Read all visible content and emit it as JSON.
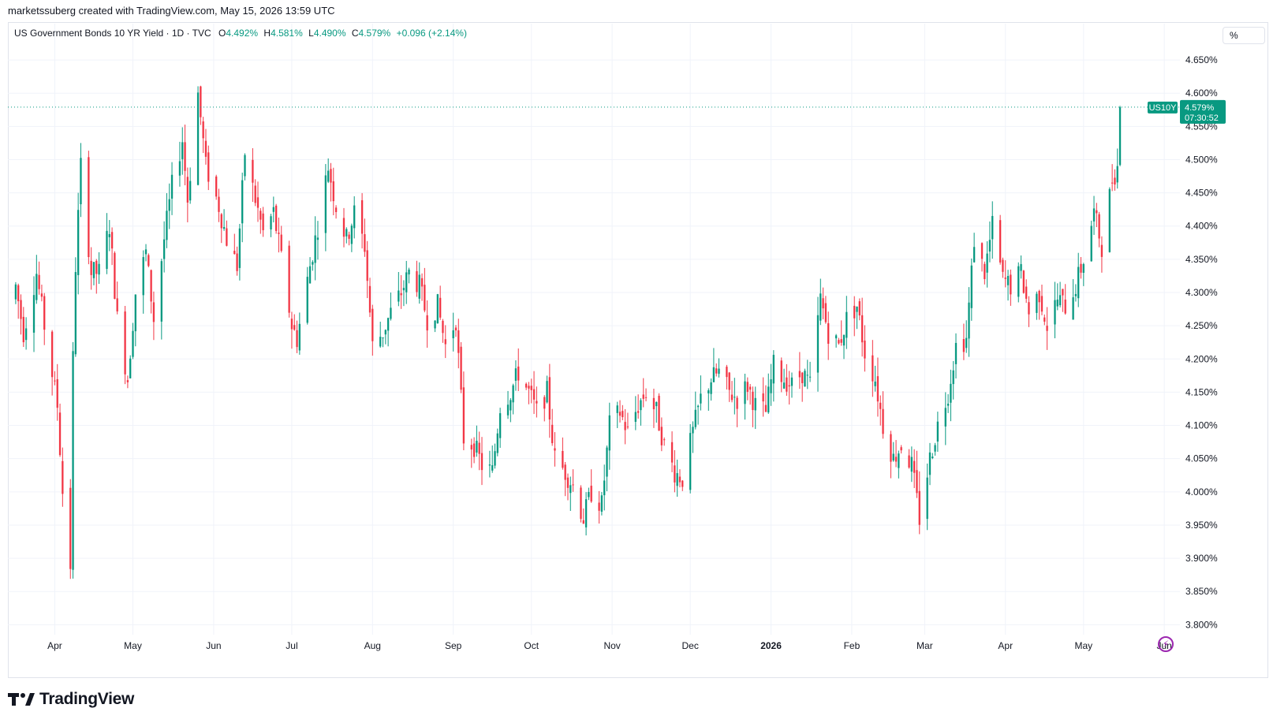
{
  "credit": "marketssuberg created with TradingView.com, May 15, 2026 13:59 UTC",
  "legend": {
    "title": "US Government Bonds 10 YR Yield · 1D · TVC",
    "o_label": "O",
    "o_value": "4.492%",
    "h_label": "H",
    "h_value": "4.581%",
    "l_label": "L",
    "l_value": "4.490%",
    "c_label": "C",
    "c_value": "4.579%",
    "change": "+0.096 (+2.14%)"
  },
  "unit": "%",
  "price_label": {
    "symbol": "US10Y",
    "price": "4.579%",
    "countdown": "07:30:52"
  },
  "brand": "TradingView",
  "colors": {
    "up": "#089981",
    "down": "#f23645",
    "grid": "#f0f3fa",
    "text": "#131722",
    "accent": "#9c27b0"
  },
  "icons": {
    "logo": "tradingview-logo-icon",
    "flash": "lightning-icon"
  },
  "chart_data": {
    "type": "candlestick",
    "y_ticks": [
      "4.650%",
      "4.600%",
      "4.550%",
      "4.500%",
      "4.450%",
      "4.400%",
      "4.350%",
      "4.300%",
      "4.250%",
      "4.200%",
      "4.150%",
      "4.100%",
      "4.050%",
      "4.000%",
      "3.950%",
      "3.900%",
      "3.850%",
      "3.800%"
    ],
    "ylim": [
      3.785,
      4.675
    ],
    "x_labels": [
      {
        "text": "Apr",
        "date": "2025-04-01",
        "bold": false
      },
      {
        "text": "May",
        "date": "2025-05-01",
        "bold": false
      },
      {
        "text": "Jun",
        "date": "2025-06-01",
        "bold": false
      },
      {
        "text": "Jul",
        "date": "2025-07-01",
        "bold": false
      },
      {
        "text": "Aug",
        "date": "2025-08-01",
        "bold": false
      },
      {
        "text": "Sep",
        "date": "2025-09-01",
        "bold": false
      },
      {
        "text": "Oct",
        "date": "2025-10-01",
        "bold": false
      },
      {
        "text": "Nov",
        "date": "2025-11-01",
        "bold": false
      },
      {
        "text": "Dec",
        "date": "2025-12-01",
        "bold": false
      },
      {
        "text": "2026",
        "date": "2026-01-01",
        "bold": true
      },
      {
        "text": "Feb",
        "date": "2026-02-01",
        "bold": false
      },
      {
        "text": "Mar",
        "date": "2026-03-01",
        "bold": false
      },
      {
        "text": "Apr",
        "date": "2026-04-01",
        "bold": false
      },
      {
        "text": "May",
        "date": "2026-05-01",
        "bold": false
      },
      {
        "text": "Jun",
        "date": "2026-06-01",
        "bold": false
      }
    ],
    "last_close": 4.579,
    "closes": [
      {
        "date": "2025-03-17",
        "close": 4.31
      },
      {
        "date": "2025-03-20",
        "close": 4.24
      },
      {
        "date": "2025-03-25",
        "close": 4.33
      },
      {
        "date": "2025-03-28",
        "close": 4.25
      },
      {
        "date": "2025-04-02",
        "close": 4.13
      },
      {
        "date": "2025-04-04",
        "close": 4.0
      },
      {
        "date": "2025-04-07",
        "close": 3.89
      },
      {
        "date": "2025-04-08",
        "close": 4.2
      },
      {
        "date": "2025-04-09",
        "close": 4.34
      },
      {
        "date": "2025-04-11",
        "close": 4.49
      },
      {
        "date": "2025-04-15",
        "close": 4.33
      },
      {
        "date": "2025-04-18",
        "close": 4.33
      },
      {
        "date": "2025-04-22",
        "close": 4.4
      },
      {
        "date": "2025-04-25",
        "close": 4.26
      },
      {
        "date": "2025-04-29",
        "close": 4.17
      },
      {
        "date": "2025-05-02",
        "close": 4.3
      },
      {
        "date": "2025-05-06",
        "close": 4.36
      },
      {
        "date": "2025-05-09",
        "close": 4.26
      },
      {
        "date": "2025-05-13",
        "close": 4.38
      },
      {
        "date": "2025-05-16",
        "close": 4.46
      },
      {
        "date": "2025-05-20",
        "close": 4.53
      },
      {
        "date": "2025-05-22",
        "close": 4.44
      },
      {
        "date": "2025-05-26",
        "close": 4.6
      },
      {
        "date": "2025-05-29",
        "close": 4.49
      },
      {
        "date": "2025-06-03",
        "close": 4.43
      },
      {
        "date": "2025-06-06",
        "close": 4.38
      },
      {
        "date": "2025-06-10",
        "close": 4.34
      },
      {
        "date": "2025-06-13",
        "close": 4.51
      },
      {
        "date": "2025-06-17",
        "close": 4.44
      },
      {
        "date": "2025-06-20",
        "close": 4.39
      },
      {
        "date": "2025-06-24",
        "close": 4.42
      },
      {
        "date": "2025-06-27",
        "close": 4.35
      },
      {
        "date": "2025-07-01",
        "close": 4.25
      },
      {
        "date": "2025-07-03",
        "close": 4.23
      },
      {
        "date": "2025-07-08",
        "close": 4.34
      },
      {
        "date": "2025-07-11",
        "close": 4.4
      },
      {
        "date": "2025-07-15",
        "close": 4.49
      },
      {
        "date": "2025-07-18",
        "close": 4.43
      },
      {
        "date": "2025-07-22",
        "close": 4.38
      },
      {
        "date": "2025-07-25",
        "close": 4.42
      },
      {
        "date": "2025-07-29",
        "close": 4.37
      },
      {
        "date": "2025-08-01",
        "close": 4.22
      },
      {
        "date": "2025-08-05",
        "close": 4.24
      },
      {
        "date": "2025-08-08",
        "close": 4.27
      },
      {
        "date": "2025-08-12",
        "close": 4.3
      },
      {
        "date": "2025-08-15",
        "close": 4.33
      },
      {
        "date": "2025-08-19",
        "close": 4.31
      },
      {
        "date": "2025-08-22",
        "close": 4.26
      },
      {
        "date": "2025-08-26",
        "close": 4.28
      },
      {
        "date": "2025-08-29",
        "close": 4.22
      },
      {
        "date": "2025-09-02",
        "close": 4.26
      },
      {
        "date": "2025-09-05",
        "close": 4.08
      },
      {
        "date": "2025-09-09",
        "close": 4.07
      },
      {
        "date": "2025-09-12",
        "close": 4.04
      },
      {
        "date": "2025-09-16",
        "close": 4.03
      },
      {
        "date": "2025-09-19",
        "close": 4.13
      },
      {
        "date": "2025-09-23",
        "close": 4.15
      },
      {
        "date": "2025-09-26",
        "close": 4.18
      },
      {
        "date": "2025-09-30",
        "close": 4.15
      },
      {
        "date": "2025-10-03",
        "close": 4.12
      },
      {
        "date": "2025-10-07",
        "close": 4.15
      },
      {
        "date": "2025-10-10",
        "close": 4.05
      },
      {
        "date": "2025-10-14",
        "close": 4.03
      },
      {
        "date": "2025-10-17",
        "close": 4.01
      },
      {
        "date": "2025-10-21",
        "close": 3.96
      },
      {
        "date": "2025-10-24",
        "close": 4.0
      },
      {
        "date": "2025-10-28",
        "close": 3.98
      },
      {
        "date": "2025-10-31",
        "close": 4.1
      },
      {
        "date": "2025-11-04",
        "close": 4.12
      },
      {
        "date": "2025-11-07",
        "close": 4.09
      },
      {
        "date": "2025-11-11",
        "close": 4.13
      },
      {
        "date": "2025-11-14",
        "close": 4.15
      },
      {
        "date": "2025-11-18",
        "close": 4.12
      },
      {
        "date": "2025-11-21",
        "close": 4.07
      },
      {
        "date": "2025-11-25",
        "close": 4.03
      },
      {
        "date": "2025-11-28",
        "close": 4.02
      },
      {
        "date": "2025-12-02",
        "close": 4.09
      },
      {
        "date": "2025-12-05",
        "close": 4.14
      },
      {
        "date": "2025-12-09",
        "close": 4.17
      },
      {
        "date": "2025-12-12",
        "close": 4.18
      },
      {
        "date": "2025-12-16",
        "close": 4.15
      },
      {
        "date": "2025-12-19",
        "close": 4.14
      },
      {
        "date": "2025-12-23",
        "close": 4.16
      },
      {
        "date": "2025-12-26",
        "close": 4.13
      },
      {
        "date": "2025-12-30",
        "close": 4.12
      },
      {
        "date": "2026-01-02",
        "close": 4.19
      },
      {
        "date": "2026-01-06",
        "close": 4.17
      },
      {
        "date": "2026-01-09",
        "close": 4.16
      },
      {
        "date": "2026-01-13",
        "close": 4.18
      },
      {
        "date": "2026-01-16",
        "close": 4.16
      },
      {
        "date": "2026-01-20",
        "close": 4.29
      },
      {
        "date": "2026-01-23",
        "close": 4.24
      },
      {
        "date": "2026-01-27",
        "close": 4.22
      },
      {
        "date": "2026-01-30",
        "close": 4.26
      },
      {
        "date": "2026-02-03",
        "close": 4.28
      },
      {
        "date": "2026-02-06",
        "close": 4.21
      },
      {
        "date": "2026-02-10",
        "close": 4.17
      },
      {
        "date": "2026-02-13",
        "close": 4.1
      },
      {
        "date": "2026-02-17",
        "close": 4.05
      },
      {
        "date": "2026-02-20",
        "close": 4.07
      },
      {
        "date": "2026-02-24",
        "close": 4.04
      },
      {
        "date": "2026-02-27",
        "close": 3.96
      },
      {
        "date": "2026-03-03",
        "close": 4.05
      },
      {
        "date": "2026-03-06",
        "close": 4.1
      },
      {
        "date": "2026-03-10",
        "close": 4.15
      },
      {
        "date": "2026-03-13",
        "close": 4.22
      },
      {
        "date": "2026-03-17",
        "close": 4.23
      },
      {
        "date": "2026-03-20",
        "close": 4.38
      },
      {
        "date": "2026-03-24",
        "close": 4.33
      },
      {
        "date": "2026-03-27",
        "close": 4.4
      },
      {
        "date": "2026-03-31",
        "close": 4.32
      },
      {
        "date": "2026-04-03",
        "close": 4.31
      },
      {
        "date": "2026-04-07",
        "close": 4.33
      },
      {
        "date": "2026-04-10",
        "close": 4.27
      },
      {
        "date": "2026-04-14",
        "close": 4.3
      },
      {
        "date": "2026-04-17",
        "close": 4.25
      },
      {
        "date": "2026-04-21",
        "close": 4.29
      },
      {
        "date": "2026-04-24",
        "close": 4.28
      },
      {
        "date": "2026-04-28",
        "close": 4.31
      },
      {
        "date": "2026-05-01",
        "close": 4.35
      },
      {
        "date": "2026-05-05",
        "close": 4.42
      },
      {
        "date": "2026-05-08",
        "close": 4.37
      },
      {
        "date": "2026-05-12",
        "close": 4.47
      },
      {
        "date": "2026-05-13",
        "close": 4.48
      },
      {
        "date": "2026-05-14",
        "close": 4.49
      },
      {
        "date": "2026-05-15",
        "close": 4.579
      }
    ]
  }
}
